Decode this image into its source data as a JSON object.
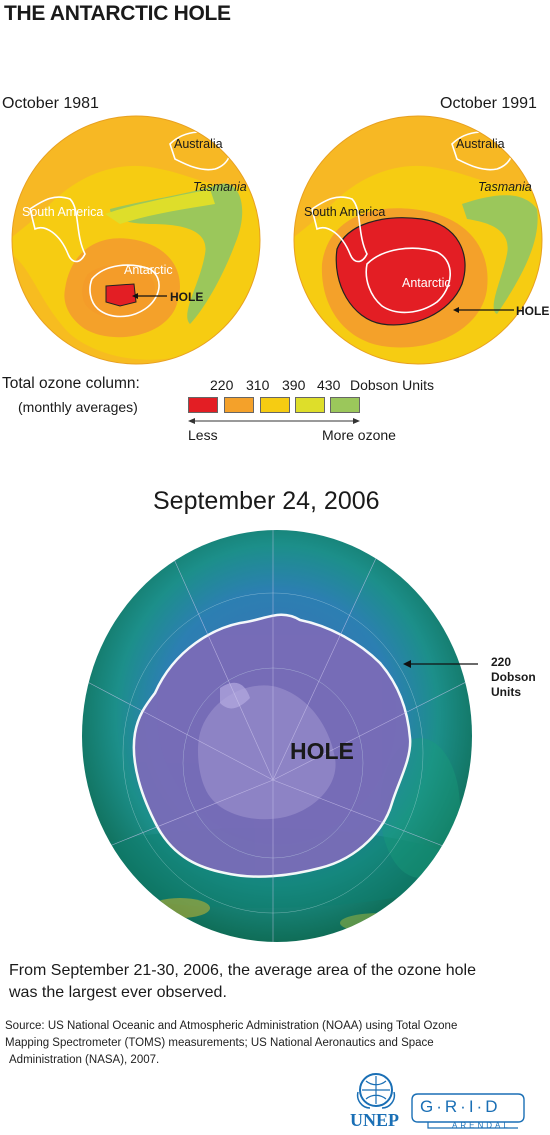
{
  "title": "THE ANTARCTIC HOLE",
  "maps": [
    {
      "date": "October 1981",
      "labels": {
        "australia": "Australia",
        "tasmania": "Tasmania",
        "south_america": "South America",
        "antarctic": "Antarctic",
        "hole": "HOLE"
      }
    },
    {
      "date": "October 1991",
      "labels": {
        "australia": "Australia",
        "tasmania": "Tasmania",
        "south_america": "South America",
        "antarctic": "Antarctic",
        "hole": "HOLE"
      }
    }
  ],
  "legend": {
    "title": "Total ozone column:",
    "subtitle": "(monthly averages)",
    "values": [
      "220",
      "310",
      "390",
      "430"
    ],
    "units": "Dobson Units",
    "colors": [
      "#e31e24",
      "#f4a12a",
      "#f6cc12",
      "#dede2a",
      "#9bc75b"
    ],
    "less": "Less",
    "more": "More ozone"
  },
  "satellite": {
    "date": "September 24, 2006",
    "hole_label": "HOLE",
    "contour_label": [
      "220",
      "Dobson",
      "Units"
    ]
  },
  "caption": [
    "From September 21-30, 2006, the average area of the ozone hole",
    "was the largest ever observed."
  ],
  "source": [
    "Source: US National Oceanic and Atmospheric Administration (NOAA) using Total Ozone",
    "Mapping Spectrometer (TOMS) measurements; US National Aeronautics and Space",
    "Administration (NASA), 2007."
  ],
  "logos": {
    "unep": "UNEP",
    "grid": "G·R·I·D",
    "arendal": "ARENDAL"
  }
}
